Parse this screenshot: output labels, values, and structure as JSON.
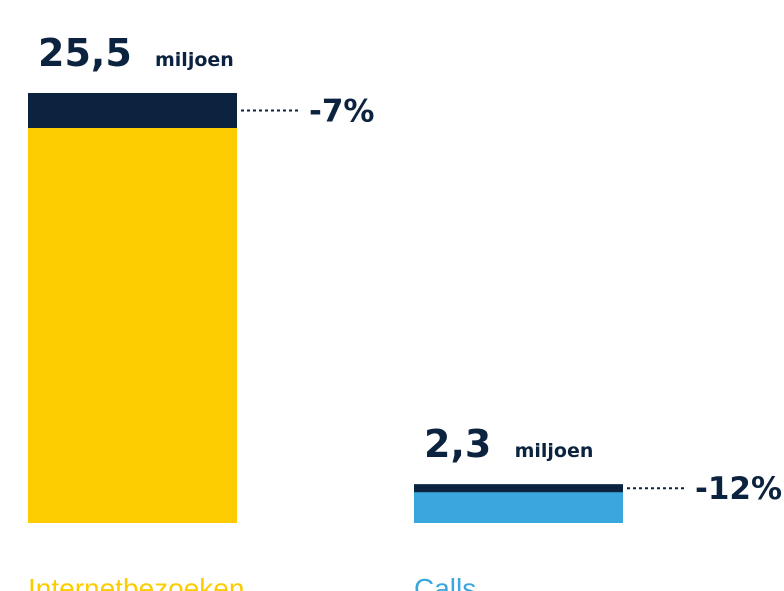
{
  "chart_data": {
    "type": "bar",
    "categories": [
      "Internetbezoeken",
      "Calls"
    ],
    "series": [
      {
        "values": [
          25.5,
          2.3
        ],
        "value_labels": [
          "25,5",
          "2,3"
        ],
        "unit": "miljoen",
        "changes": [
          "-7%",
          "-12%"
        ]
      }
    ],
    "colors": {
      "Internetbezoeken": "#fccc00",
      "Calls": "#3aa6de",
      "decline_segment": "#0c2340",
      "text": "#0c2340"
    },
    "grid": false,
    "legend": "none"
  }
}
